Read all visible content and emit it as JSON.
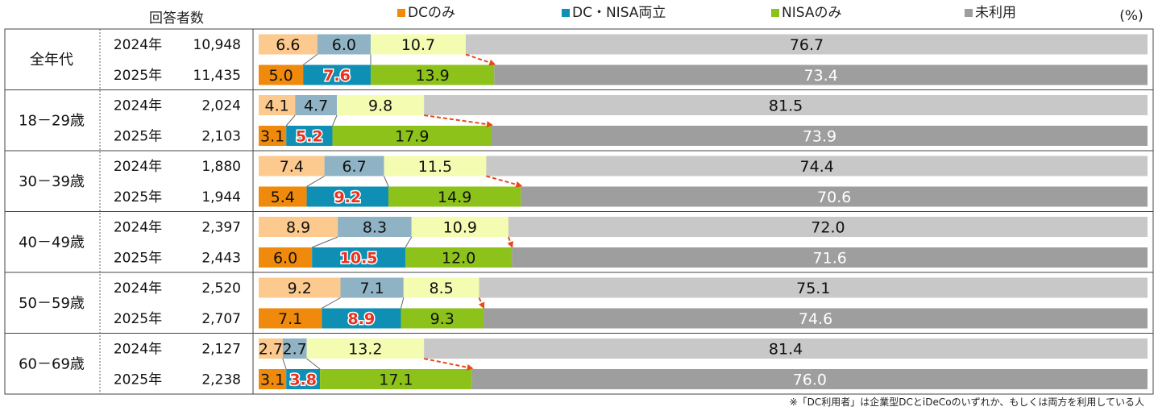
{
  "header": {
    "respondents": "回答者数",
    "percent": "(%)"
  },
  "note": "※「DC利用者」は企業型DCとiDeCoのいずれか、もしくは両方を利用している人",
  "colors": {
    "dc_only_2024": "#fcc98e",
    "dc_only_2025": "#ef8a0c",
    "both_2024": "#8fb3c4",
    "both_2025": "#0f8fb3",
    "nisa_2024": "#f3fcb1",
    "nisa_2025": "#8cc21a",
    "unused_2024": "#c8c8c8",
    "unused_2025": "#9e9e9e",
    "arrow": "#e84a1a",
    "highlight_text": "#e8321e"
  },
  "chart_data": {
    "type": "bar",
    "orientation": "horizontal",
    "stacked": true,
    "xlim": [
      0,
      100
    ],
    "unit": "%",
    "series": [
      {
        "name": "DCのみ"
      },
      {
        "name": "DC・NISA両立"
      },
      {
        "name": "NISAのみ"
      },
      {
        "name": "未利用"
      }
    ],
    "groups": [
      {
        "label": "全年代",
        "rows": [
          {
            "year": "2024年",
            "count": "10,948",
            "values": [
              6.6,
              6.0,
              10.7,
              76.7
            ]
          },
          {
            "year": "2025年",
            "count": "11,435",
            "values": [
              5.0,
              7.6,
              13.9,
              73.4
            ]
          }
        ]
      },
      {
        "label": "18－29歳",
        "rows": [
          {
            "year": "2024年",
            "count": "2,024",
            "values": [
              4.1,
              4.7,
              9.8,
              81.5
            ]
          },
          {
            "year": "2025年",
            "count": "2,103",
            "values": [
              3.1,
              5.2,
              17.9,
              73.9
            ]
          }
        ]
      },
      {
        "label": "30－39歳",
        "rows": [
          {
            "year": "2024年",
            "count": "1,880",
            "values": [
              7.4,
              6.7,
              11.5,
              74.4
            ]
          },
          {
            "year": "2025年",
            "count": "1,944",
            "values": [
              5.4,
              9.2,
              14.9,
              70.6
            ]
          }
        ]
      },
      {
        "label": "40－49歳",
        "rows": [
          {
            "year": "2024年",
            "count": "2,397",
            "values": [
              8.9,
              8.3,
              10.9,
              72.0
            ]
          },
          {
            "year": "2025年",
            "count": "2,443",
            "values": [
              6.0,
              10.5,
              12.0,
              71.6
            ]
          }
        ]
      },
      {
        "label": "50－59歳",
        "rows": [
          {
            "year": "2024年",
            "count": "2,520",
            "values": [
              9.2,
              7.1,
              8.5,
              75.1
            ]
          },
          {
            "year": "2025年",
            "count": "2,707",
            "values": [
              7.1,
              8.9,
              9.3,
              74.6
            ]
          }
        ]
      },
      {
        "label": "60－69歳",
        "rows": [
          {
            "year": "2024年",
            "count": "2,127",
            "values": [
              2.7,
              2.7,
              13.2,
              81.4
            ]
          },
          {
            "year": "2025年",
            "count": "2,238",
            "values": [
              3.1,
              3.8,
              17.1,
              76.0
            ]
          }
        ]
      }
    ]
  }
}
